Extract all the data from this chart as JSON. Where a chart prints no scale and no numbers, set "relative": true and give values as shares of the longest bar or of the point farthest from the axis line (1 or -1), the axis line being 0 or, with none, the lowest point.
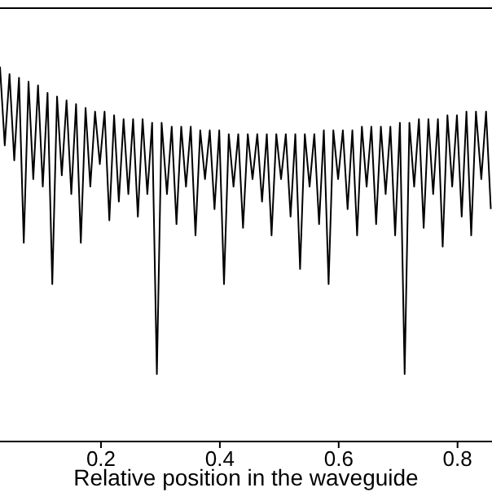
{
  "chart_data": {
    "type": "line",
    "relative": true,
    "xlabel": "Relative position in the waveguide",
    "xlim": [
      0.03,
      0.858
    ],
    "xticks": [
      0.2,
      0.4,
      0.6,
      0.8
    ],
    "grid": false,
    "marker": "none",
    "line_style": "solid",
    "series": [
      {
        "color": "#000000",
        "x": [
          0.03,
          0.038,
          0.046,
          0.054,
          0.062,
          0.07,
          0.078,
          0.086,
          0.094,
          0.102,
          0.11,
          0.118,
          0.126,
          0.134,
          0.142,
          0.15,
          0.158,
          0.166,
          0.174,
          0.182,
          0.19,
          0.198,
          0.206,
          0.214,
          0.222,
          0.23,
          0.238,
          0.246,
          0.254,
          0.262,
          0.27,
          0.278,
          0.286,
          0.294,
          0.302,
          0.311,
          0.319,
          0.327,
          0.335,
          0.343,
          0.351,
          0.359,
          0.367,
          0.375,
          0.383,
          0.391,
          0.399,
          0.407,
          0.415,
          0.423,
          0.431,
          0.439,
          0.447,
          0.455,
          0.463,
          0.471,
          0.479,
          0.487,
          0.495,
          0.503,
          0.511,
          0.519,
          0.527,
          0.535,
          0.543,
          0.551,
          0.559,
          0.567,
          0.575,
          0.583,
          0.591,
          0.599,
          0.607,
          0.615,
          0.623,
          0.631,
          0.639,
          0.647,
          0.655,
          0.663,
          0.671,
          0.679,
          0.687,
          0.695,
          0.703,
          0.711,
          0.719,
          0.727,
          0.735,
          0.743,
          0.751,
          0.759,
          0.767,
          0.775,
          0.783,
          0.791,
          0.799,
          0.807,
          0.815,
          0.823,
          0.831,
          0.84,
          0.848,
          0.856
        ],
        "values": [
          1.0,
          0.79,
          0.98,
          0.75,
          0.97,
          0.53,
          0.96,
          0.7,
          0.95,
          0.68,
          0.93,
          0.42,
          0.92,
          0.71,
          0.91,
          0.66,
          0.9,
          0.53,
          0.89,
          0.68,
          0.88,
          0.74,
          0.88,
          0.59,
          0.87,
          0.64,
          0.86,
          0.66,
          0.86,
          0.6,
          0.86,
          0.66,
          0.85,
          0.18,
          0.85,
          0.66,
          0.84,
          0.58,
          0.84,
          0.68,
          0.84,
          0.55,
          0.83,
          0.7,
          0.83,
          0.62,
          0.83,
          0.42,
          0.82,
          0.68,
          0.82,
          0.57,
          0.82,
          0.7,
          0.82,
          0.64,
          0.82,
          0.55,
          0.82,
          0.7,
          0.82,
          0.6,
          0.82,
          0.46,
          0.82,
          0.68,
          0.82,
          0.58,
          0.83,
          0.42,
          0.83,
          0.7,
          0.83,
          0.62,
          0.83,
          0.55,
          0.84,
          0.68,
          0.84,
          0.58,
          0.84,
          0.66,
          0.84,
          0.55,
          0.85,
          0.18,
          0.85,
          0.68,
          0.86,
          0.57,
          0.86,
          0.66,
          0.86,
          0.52,
          0.87,
          0.68,
          0.87,
          0.6,
          0.88,
          0.55,
          0.88,
          0.7,
          0.88,
          0.62
        ]
      }
    ]
  }
}
